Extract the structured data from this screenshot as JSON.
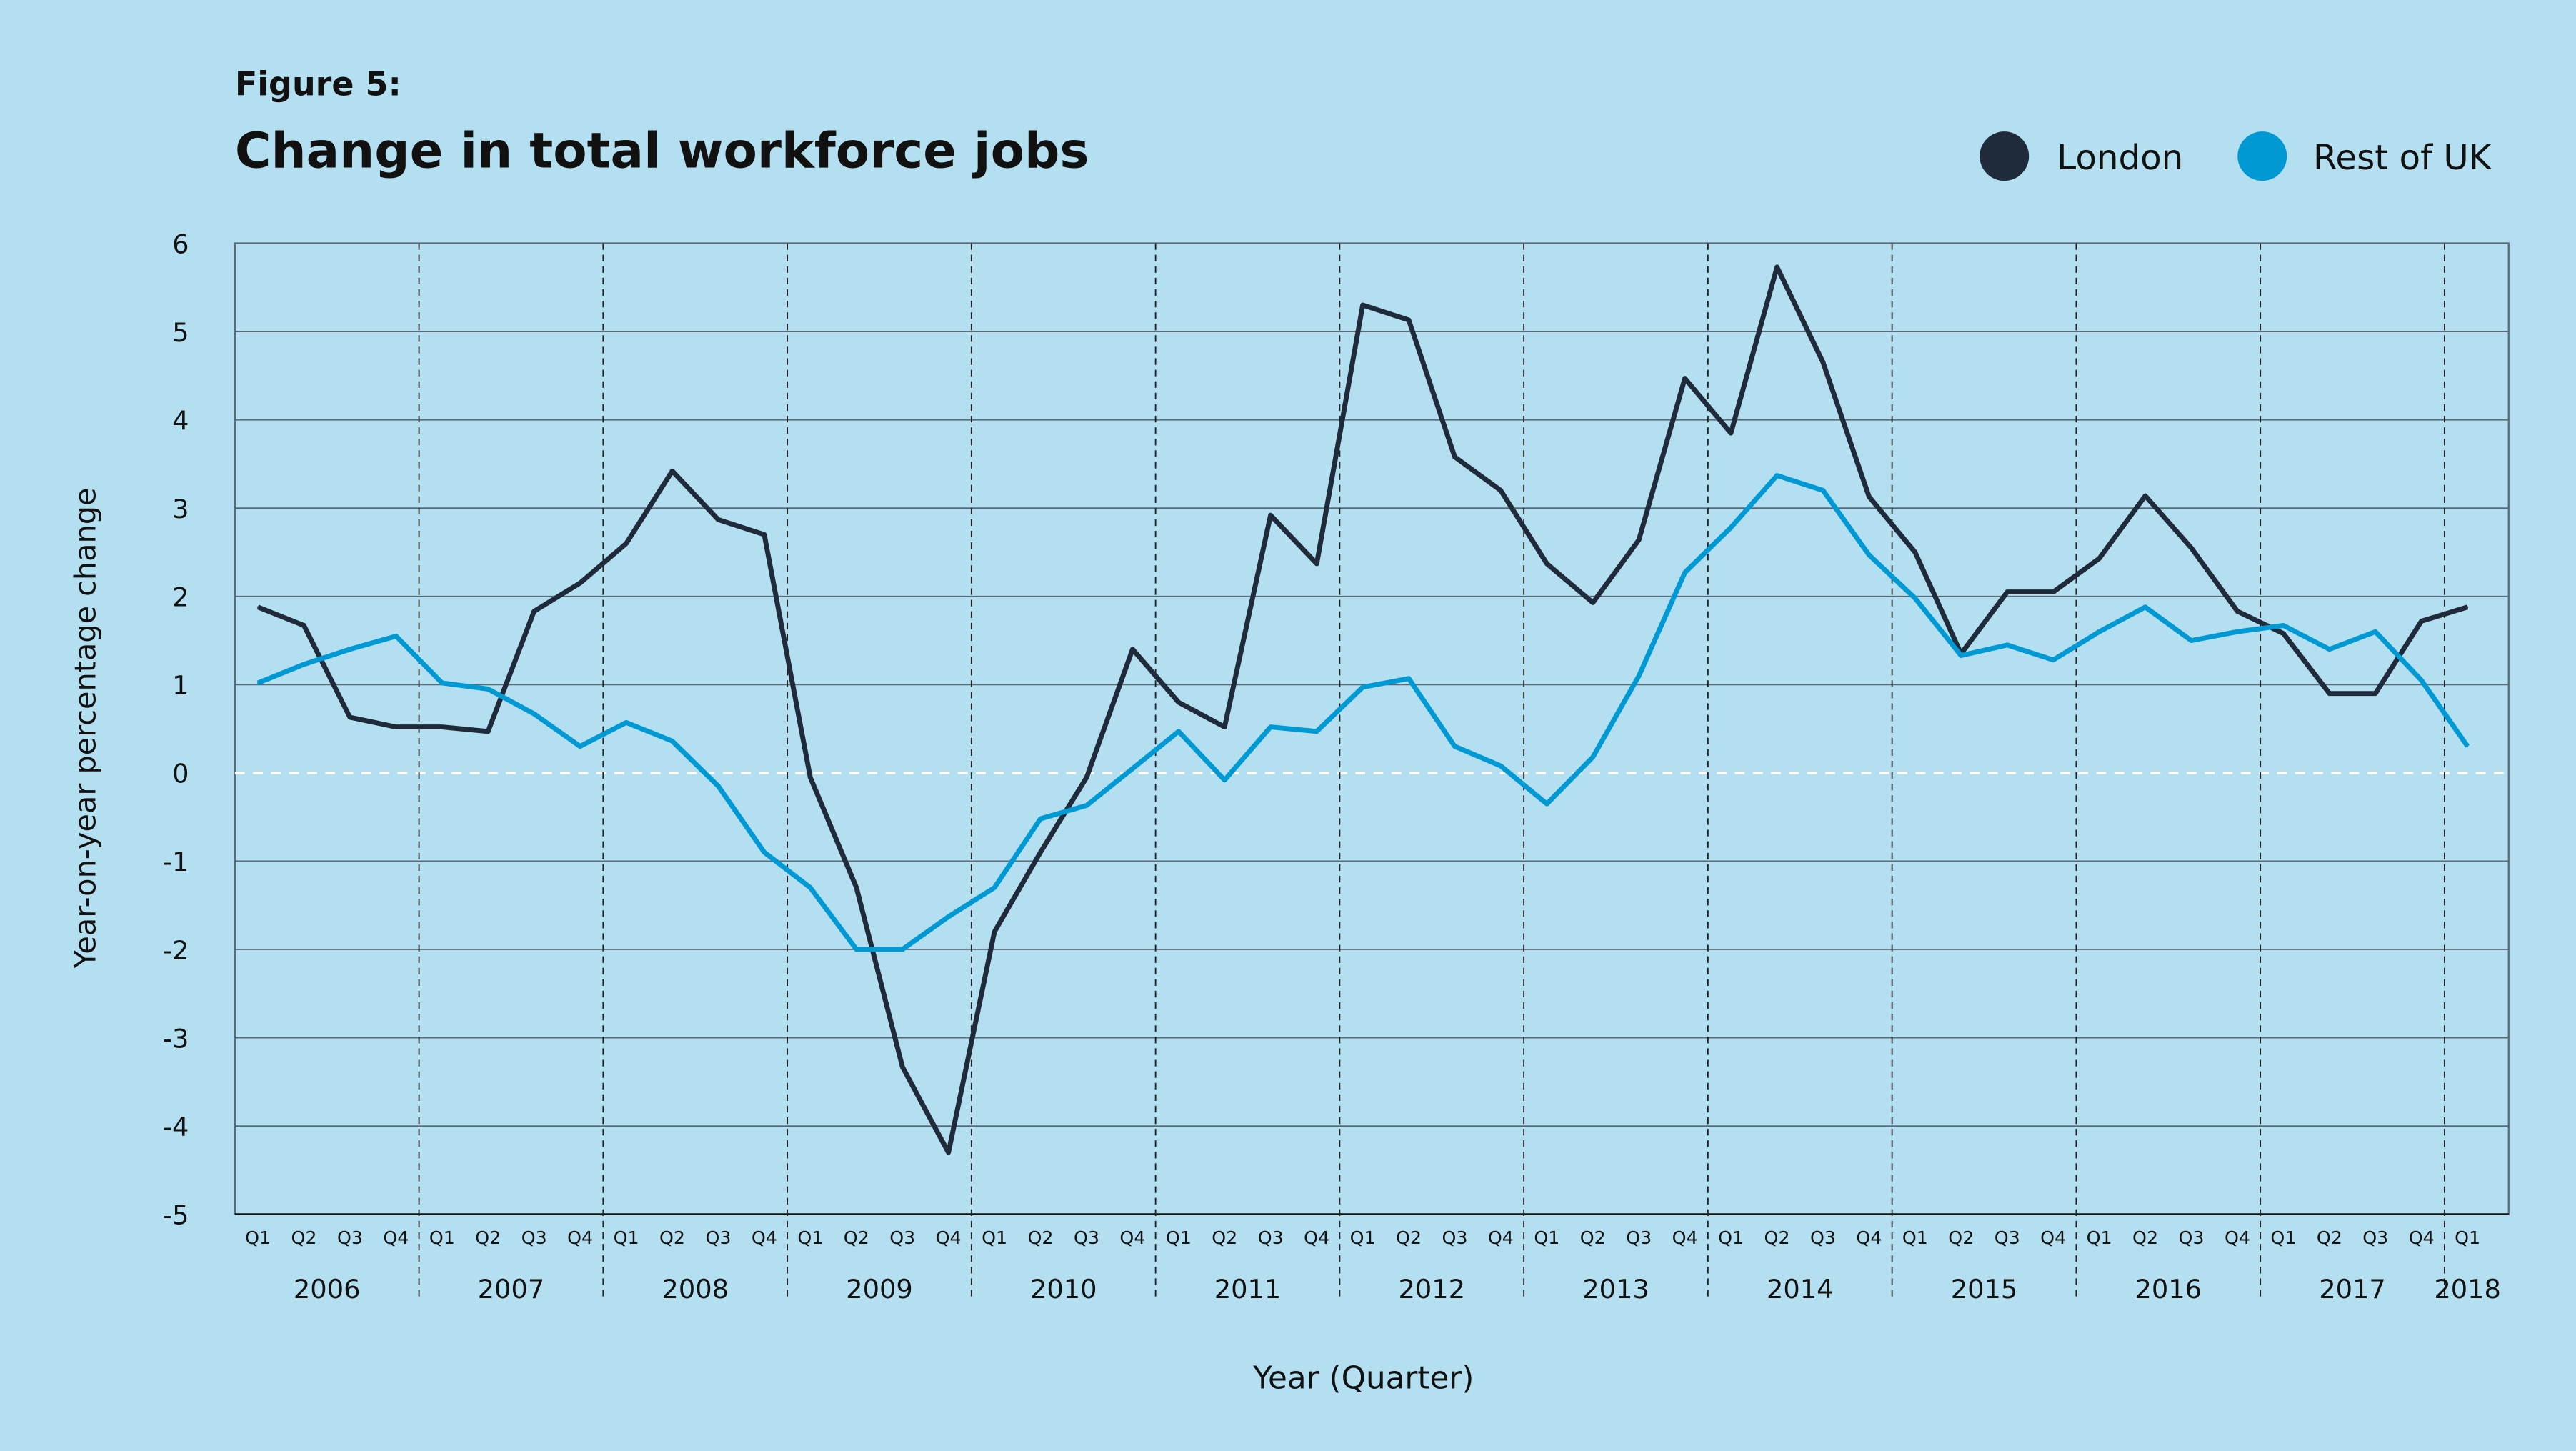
{
  "figure_label": "Figure 5:",
  "colors": {
    "background": "#b3dff1",
    "london": "#1f2a3a",
    "rest_of_uk": "#0099d4",
    "grid": "#5a6b78",
    "zero_line": "#ffffff"
  },
  "chart_data": {
    "type": "line",
    "title": "Change in total workforce jobs",
    "xlabel": "Year (Quarter)",
    "ylabel": "Year-on-year percentage change",
    "ylim": [
      -5,
      6
    ],
    "yticks": [
      6,
      5,
      4,
      3,
      2,
      1,
      0,
      -1,
      -2,
      -3,
      -4,
      -5
    ],
    "grid": true,
    "legend_position": "top-right",
    "quarters": [
      "Q1",
      "Q2",
      "Q3",
      "Q4",
      "Q1",
      "Q2",
      "Q3",
      "Q4",
      "Q1",
      "Q2",
      "Q3",
      "Q4",
      "Q1",
      "Q2",
      "Q3",
      "Q4",
      "Q1",
      "Q2",
      "Q3",
      "Q4",
      "Q1",
      "Q2",
      "Q3",
      "Q4",
      "Q1",
      "Q2",
      "Q3",
      "Q4",
      "Q1",
      "Q2",
      "Q3",
      "Q4",
      "Q1",
      "Q2",
      "Q3",
      "Q4",
      "Q1",
      "Q2",
      "Q3",
      "Q4",
      "Q1",
      "Q2",
      "Q3",
      "Q4",
      "Q1",
      "Q2",
      "Q3",
      "Q4",
      "Q1"
    ],
    "years": [
      "2006",
      "2007",
      "2008",
      "2009",
      "2010",
      "2011",
      "2012",
      "2013",
      "2014",
      "2015",
      "2016",
      "2017",
      "2018"
    ],
    "series": [
      {
        "name": "London",
        "color": "#1f2a3a",
        "values": [
          1.88,
          1.67,
          0.63,
          0.52,
          0.52,
          0.47,
          1.83,
          2.15,
          2.6,
          3.42,
          2.87,
          2.7,
          -0.05,
          -1.3,
          -3.33,
          -4.3,
          -1.8,
          -0.9,
          -0.05,
          1.4,
          0.8,
          0.52,
          2.92,
          2.37,
          5.3,
          5.13,
          3.58,
          3.2,
          2.37,
          1.93,
          2.64,
          4.47,
          3.85,
          5.73,
          4.65,
          3.13,
          2.5,
          1.35,
          2.05,
          2.05,
          2.43,
          3.14,
          2.55,
          1.83,
          1.58,
          0.9,
          0.9,
          1.72,
          1.88
        ]
      },
      {
        "name": "Rest of UK",
        "color": "#0099d4",
        "values": [
          1.02,
          1.23,
          1.4,
          1.55,
          1.02,
          0.95,
          0.67,
          0.3,
          0.57,
          0.36,
          -0.15,
          -0.9,
          -1.3,
          -2.0,
          -2.0,
          -1.63,
          -1.3,
          -0.52,
          -0.37,
          0.05,
          0.47,
          -0.08,
          0.52,
          0.47,
          0.97,
          1.07,
          0.3,
          0.08,
          -0.35,
          0.18,
          1.1,
          2.27,
          2.78,
          3.37,
          3.2,
          2.47,
          1.98,
          1.33,
          1.45,
          1.28,
          1.6,
          1.88,
          1.5,
          1.6,
          1.67,
          1.4,
          1.6,
          1.05,
          0.3
        ]
      }
    ]
  }
}
